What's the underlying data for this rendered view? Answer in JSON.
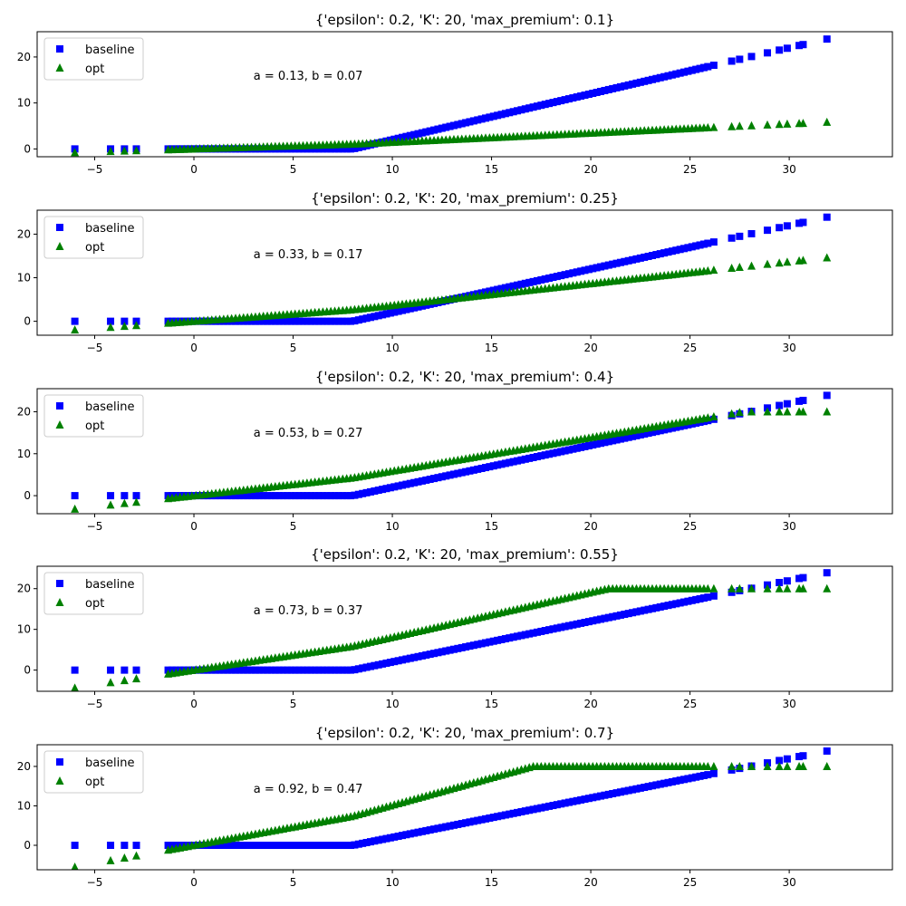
{
  "colors": {
    "baseline": "#0000ff",
    "opt": "#008000",
    "axes": "#000000",
    "legend_border": "#cccccc",
    "background": "#ffffff"
  },
  "chart_data": [
    {
      "type": "scatter",
      "title": "{'epsilon': 0.2, 'K': 20, 'max_premium': 0.1}",
      "annotation": "a = 0.13, b = 0.07",
      "a": 0.13,
      "b": 0.07,
      "opt_cap": 20,
      "xlim": [
        -7.9,
        35.2
      ],
      "ylim": [
        -1.7,
        25.5
      ],
      "xticks": [
        -5,
        0,
        5,
        10,
        15,
        20,
        25,
        30
      ],
      "yticks": [
        0,
        10,
        20
      ],
      "grid": false,
      "legend_location": "upper-left",
      "series": [
        {
          "name": "baseline",
          "marker": "square",
          "color": "#0000ff",
          "rule": "max(0, x - 8)"
        },
        {
          "name": "opt",
          "marker": "triangle",
          "color": "#008000",
          "rule": "min(20, a*x + b*max(0, x - 8))"
        }
      ]
    },
    {
      "type": "scatter",
      "title": "{'epsilon': 0.2, 'K': 20, 'max_premium': 0.25}",
      "annotation": "a = 0.33, b = 0.17",
      "a": 0.33,
      "b": 0.17,
      "opt_cap": 20,
      "xlim": [
        -7.9,
        35.2
      ],
      "ylim": [
        -3.2,
        25.5
      ],
      "xticks": [
        -5,
        0,
        5,
        10,
        15,
        20,
        25,
        30
      ],
      "yticks": [
        0,
        10,
        20
      ],
      "grid": false,
      "legend_location": "upper-left",
      "series": [
        {
          "name": "baseline",
          "marker": "square",
          "color": "#0000ff",
          "rule": "max(0, x - 8)"
        },
        {
          "name": "opt",
          "marker": "triangle",
          "color": "#008000",
          "rule": "min(20, a*x + b*max(0, x - 8))"
        }
      ]
    },
    {
      "type": "scatter",
      "title": "{'epsilon': 0.2, 'K': 20, 'max_premium': 0.4}",
      "annotation": "a = 0.53, b = 0.27",
      "a": 0.53,
      "b": 0.27,
      "opt_cap": 20,
      "xlim": [
        -7.9,
        35.2
      ],
      "ylim": [
        -4.3,
        25.5
      ],
      "xticks": [
        -5,
        0,
        5,
        10,
        15,
        20,
        25,
        30
      ],
      "yticks": [
        0,
        10,
        20
      ],
      "grid": false,
      "legend_location": "upper-left",
      "series": [
        {
          "name": "baseline",
          "marker": "square",
          "color": "#0000ff",
          "rule": "max(0, x - 8)"
        },
        {
          "name": "opt",
          "marker": "triangle",
          "color": "#008000",
          "rule": "min(20, a*x + b*max(0, x - 8))"
        }
      ]
    },
    {
      "type": "scatter",
      "title": "{'epsilon': 0.2, 'K': 20, 'max_premium': 0.55}",
      "annotation": "a = 0.73, b = 0.37",
      "a": 0.73,
      "b": 0.37,
      "opt_cap": 20,
      "xlim": [
        -7.9,
        35.2
      ],
      "ylim": [
        -5.2,
        25.5
      ],
      "xticks": [
        -5,
        0,
        5,
        10,
        15,
        20,
        25,
        30
      ],
      "yticks": [
        0,
        10,
        20
      ],
      "grid": false,
      "legend_location": "upper-left",
      "series": [
        {
          "name": "baseline",
          "marker": "square",
          "color": "#0000ff",
          "rule": "max(0, x - 8)"
        },
        {
          "name": "opt",
          "marker": "triangle",
          "color": "#008000",
          "rule": "min(20, a*x + b*max(0, x - 8))"
        }
      ]
    },
    {
      "type": "scatter",
      "title": "{'epsilon': 0.2, 'K': 20, 'max_premium': 0.7}",
      "annotation": "a = 0.92, b = 0.47",
      "a": 0.92,
      "b": 0.47,
      "opt_cap": 20,
      "xlim": [
        -7.9,
        35.2
      ],
      "ylim": [
        -6.2,
        25.5
      ],
      "xticks": [
        -5,
        0,
        5,
        10,
        15,
        20,
        25,
        30
      ],
      "yticks": [
        0,
        10,
        20
      ],
      "grid": false,
      "legend_location": "upper-left",
      "series": [
        {
          "name": "baseline",
          "marker": "square",
          "color": "#0000ff",
          "rule": "max(0, x - 8)"
        },
        {
          "name": "opt",
          "marker": "triangle",
          "color": "#008000",
          "rule": "min(20, a*x + b*max(0, x - 8))"
        }
      ]
    }
  ],
  "x_samples": [
    -6,
    -4.2,
    -3.5,
    -2.9,
    -1.3,
    -1.1,
    -0.9,
    -0.7,
    -0.5,
    -0.3,
    -0.1,
    0.1,
    0.3,
    0.5,
    0.7,
    0.9,
    1.1,
    1.3,
    1.5,
    1.7,
    1.9,
    2.1,
    2.3,
    2.5,
    2.7,
    2.9,
    3.1,
    3.3,
    3.5,
    3.7,
    3.9,
    4.1,
    4.3,
    4.5,
    4.7,
    4.9,
    5.1,
    5.3,
    5.5,
    5.7,
    5.9,
    6.1,
    6.3,
    6.5,
    6.7,
    6.9,
    7.1,
    7.3,
    7.5,
    7.7,
    7.9,
    8.1,
    8.3,
    8.5,
    8.7,
    8.9,
    9.1,
    9.3,
    9.5,
    9.7,
    9.9,
    10.1,
    10.3,
    10.5,
    10.7,
    10.9,
    11.1,
    11.3,
    11.5,
    11.7,
    11.9,
    12.1,
    12.3,
    12.5,
    12.7,
    12.9,
    13.1,
    13.3,
    13.5,
    13.7,
    13.9,
    14.1,
    14.3,
    14.5,
    14.7,
    14.9,
    15.1,
    15.3,
    15.5,
    15.7,
    15.9,
    16.1,
    16.3,
    16.5,
    16.7,
    16.9,
    17.1,
    17.3,
    17.5,
    17.7,
    17.9,
    18.1,
    18.3,
    18.5,
    18.7,
    18.9,
    19.1,
    19.3,
    19.5,
    19.7,
    19.9,
    20.1,
    20.3,
    20.5,
    20.7,
    20.9,
    21.1,
    21.3,
    21.5,
    21.7,
    21.9,
    22.1,
    22.3,
    22.5,
    22.7,
    22.9,
    23.1,
    23.3,
    23.5,
    23.7,
    23.9,
    24.1,
    24.3,
    24.5,
    24.7,
    24.9,
    25.1,
    25.3,
    25.5,
    25.7,
    25.9,
    26.2,
    27.1,
    27.5,
    28.1,
    28.9,
    29.5,
    29.9,
    30.5,
    30.7,
    31.9
  ]
}
